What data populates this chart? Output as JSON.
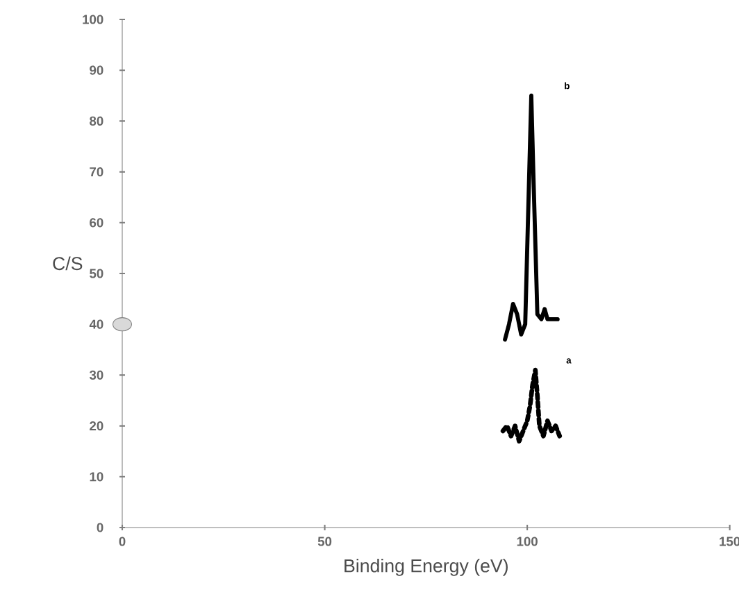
{
  "chart_data": {
    "type": "line",
    "xlabel": "Binding Energy (eV)",
    "ylabel": "C/S",
    "xlim": [
      0,
      150
    ],
    "ylim": [
      0,
      100
    ],
    "xticks": [
      0,
      50,
      100,
      150
    ],
    "yticks": [
      0,
      10,
      20,
      30,
      40,
      50,
      60,
      70,
      80,
      90,
      100
    ],
    "series": [
      {
        "color": "#000000",
        "line_style": "dotted",
        "x": [
          94,
          95,
          96,
          97,
          98,
          99,
          100,
          100.7,
          101.3,
          102,
          102.5,
          103,
          104,
          105,
          106,
          107,
          108
        ],
        "values": [
          19,
          20,
          18,
          20,
          17,
          19,
          21,
          24,
          28,
          31,
          26,
          20,
          18,
          21,
          19,
          20,
          18
        ]
      },
      {
        "color": "#000000",
        "line_style": "solid",
        "x": [
          94.5,
          95.5,
          96.5,
          97.5,
          98.5,
          99.5,
          100.5,
          101,
          101.5,
          102.5,
          103.5,
          104.3,
          105,
          106.5,
          107.5
        ],
        "values": [
          37,
          40,
          44,
          42,
          38,
          40,
          70,
          85,
          70,
          42,
          41,
          43,
          41,
          41,
          41
        ]
      },
      {
        "type": "scatter",
        "color": "#d9d9d9",
        "x": [
          0
        ],
        "values": [
          40
        ]
      }
    ],
    "annotations": [
      "a",
      "b"
    ]
  }
}
